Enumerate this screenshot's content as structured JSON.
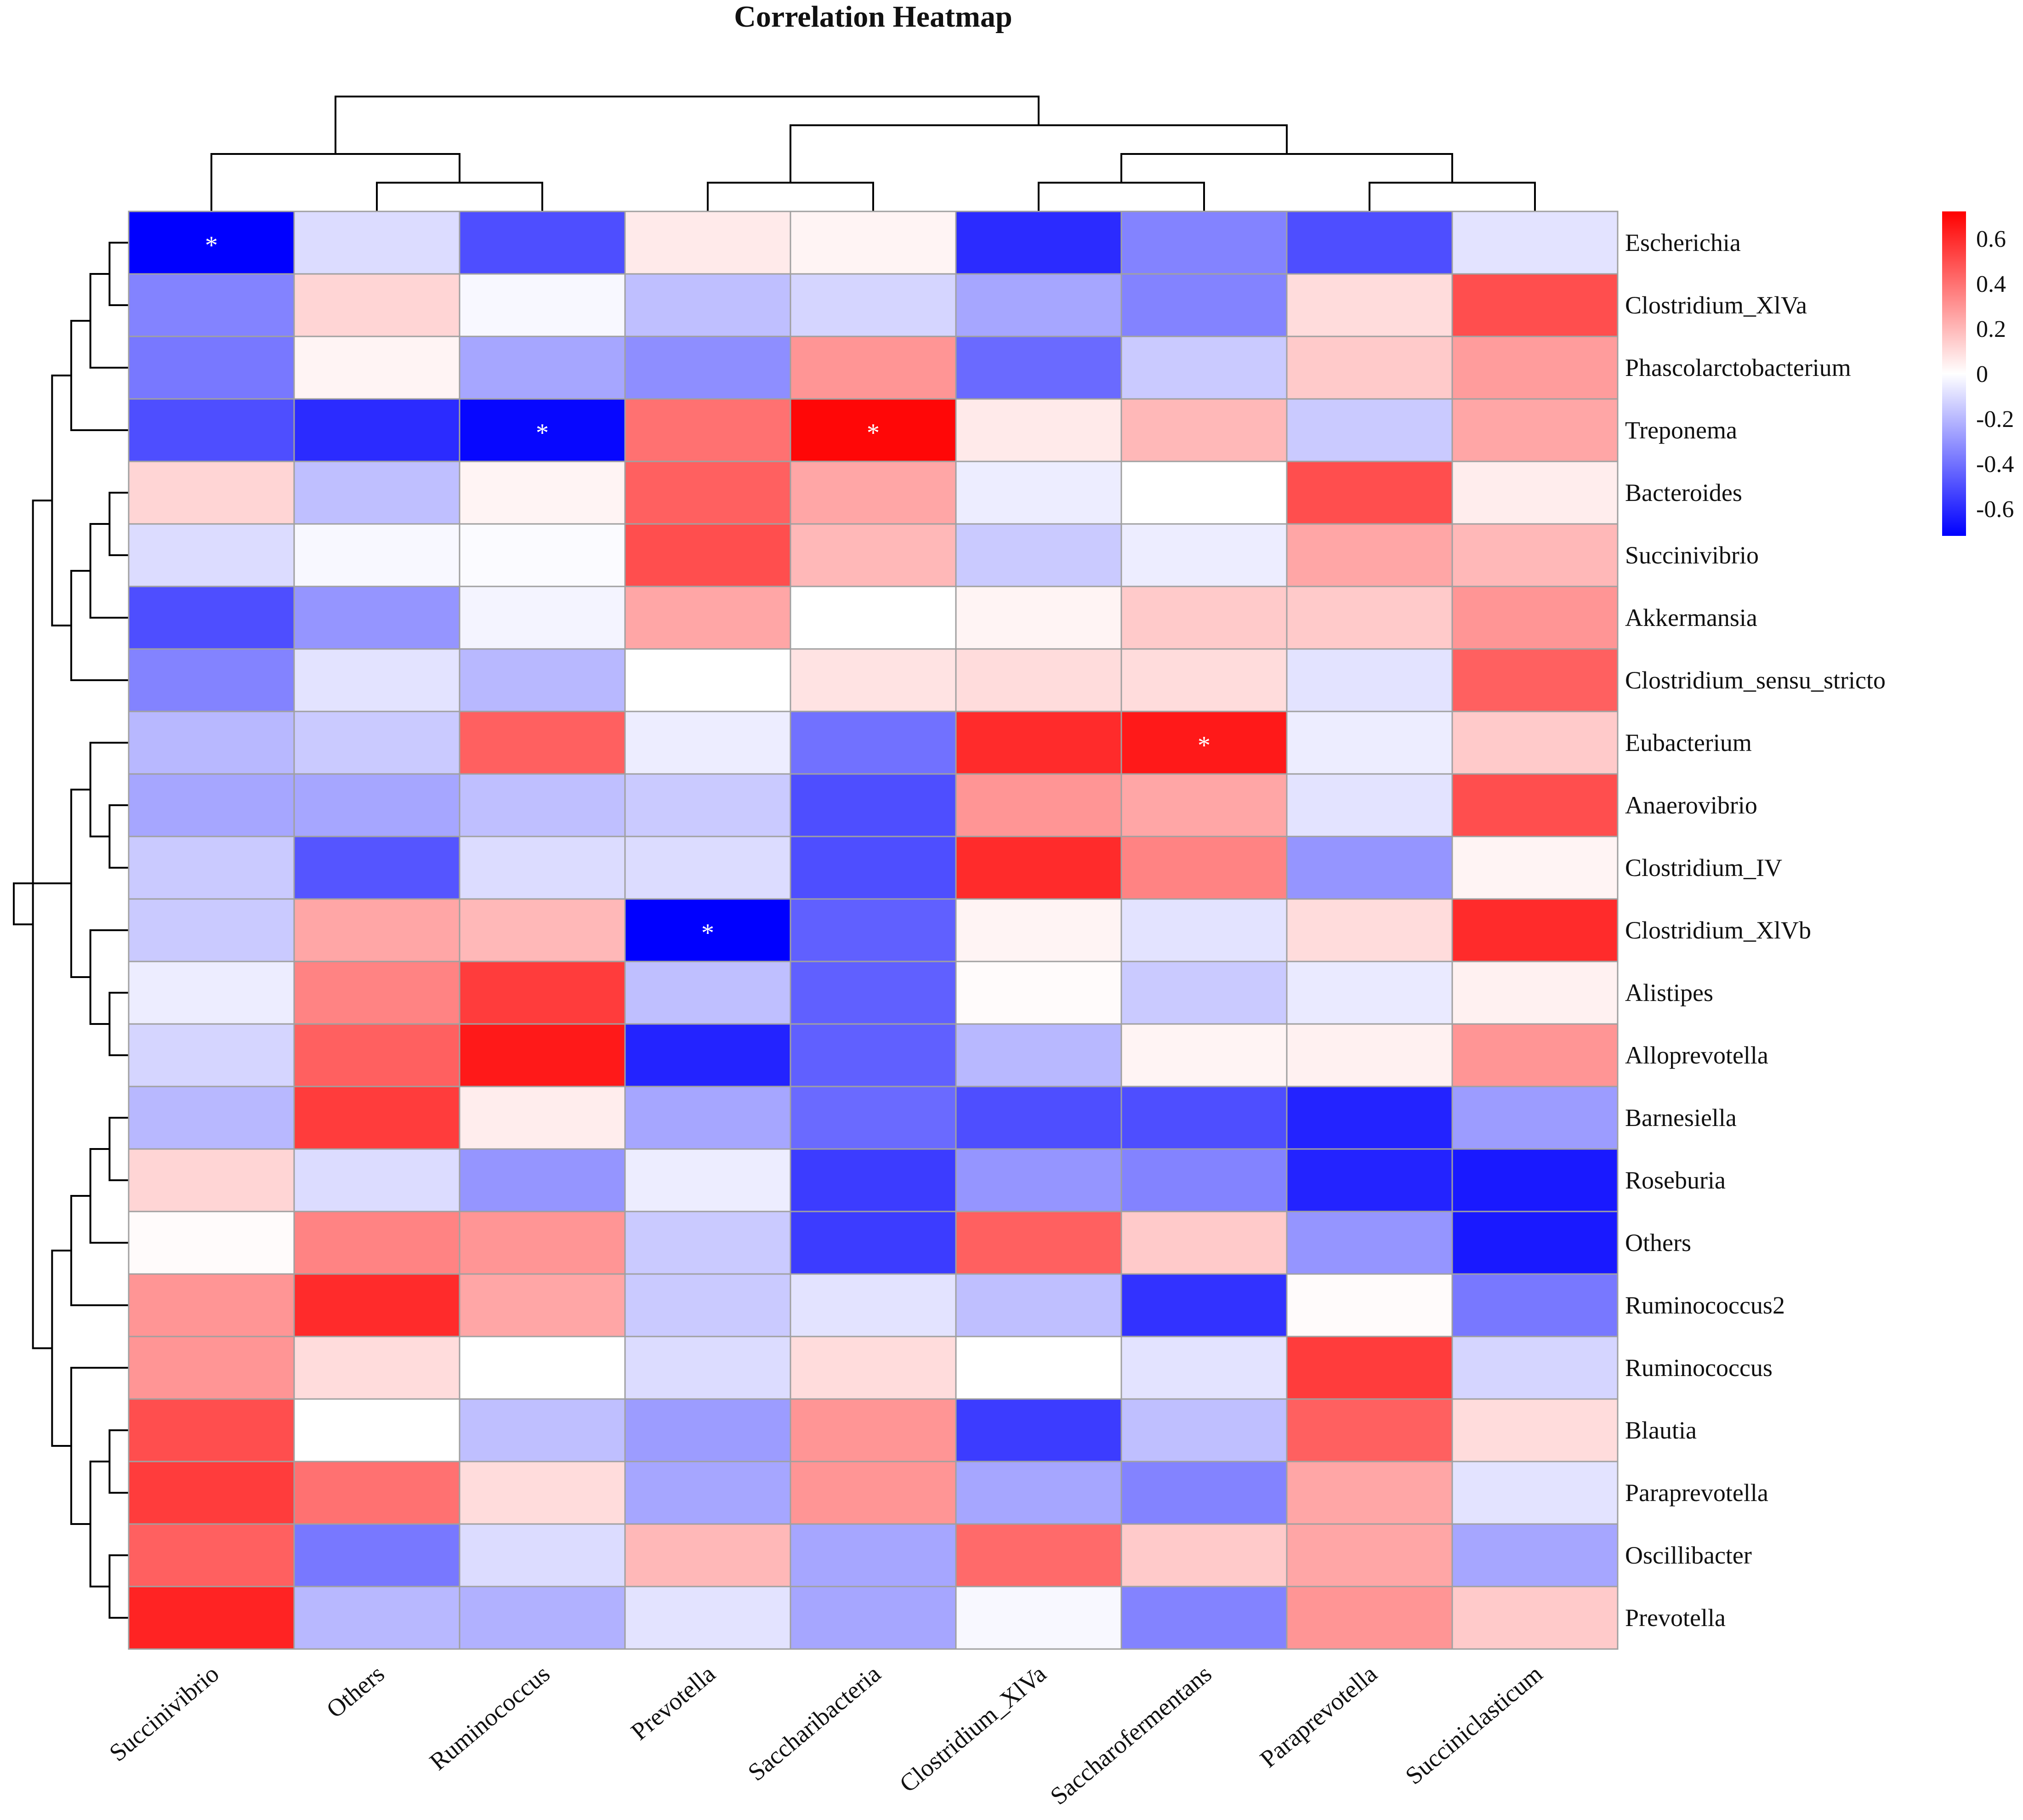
{
  "chart_data": {
    "type": "heatmap",
    "title": "Correlation Heatmap",
    "columns": [
      "Succinivibrio",
      "Others",
      "Ruminococcus",
      "Prevotella",
      "Saccharibacteria",
      "Clostridium_XlVa",
      "Saccharofermentans",
      "Paraprevotella",
      "Succiniclasticum"
    ],
    "rows": [
      "Escherichia",
      "Clostridium_XlVa",
      "Phascolarctobacterium",
      "Treponema",
      "Bacteroides",
      "Succinivibrio",
      "Akkermansia",
      "Clostridium_sensu_stricto",
      "Eubacterium",
      "Anaerovibrio",
      "Clostridium_IV",
      "Clostridium_XlVb",
      "Alistipes",
      "Alloprevotella",
      "Barnesiella",
      "Roseburia",
      "Others",
      "Ruminococcus2",
      "Ruminococcus",
      "Blautia",
      "Paraprevotella",
      "Oscillibacter",
      "Prevotella"
    ],
    "values": [
      [
        -0.72,
        -0.1,
        -0.5,
        0.06,
        0.03,
        -0.6,
        -0.35,
        -0.5,
        -0.08
      ],
      [
        -0.35,
        0.12,
        -0.02,
        -0.18,
        -0.12,
        -0.25,
        -0.35,
        0.1,
        0.5
      ],
      [
        -0.38,
        0.03,
        -0.25,
        -0.32,
        0.3,
        -0.42,
        -0.15,
        0.15,
        0.28
      ],
      [
        -0.5,
        -0.6,
        -0.7,
        0.4,
        0.7,
        0.06,
        0.2,
        -0.15,
        0.25
      ],
      [
        0.12,
        -0.18,
        0.03,
        0.45,
        0.25,
        -0.05,
        0.0,
        0.5,
        0.05
      ],
      [
        -0.1,
        -0.02,
        -0.01,
        0.5,
        0.2,
        -0.15,
        -0.05,
        0.25,
        0.2
      ],
      [
        -0.5,
        -0.3,
        -0.03,
        0.25,
        0.0,
        0.03,
        0.15,
        0.15,
        0.3
      ],
      [
        -0.35,
        -0.08,
        -0.2,
        0.0,
        0.08,
        0.1,
        0.1,
        -0.08,
        0.45
      ],
      [
        -0.2,
        -0.15,
        0.45,
        -0.05,
        -0.4,
        0.6,
        0.65,
        -0.05,
        0.15
      ],
      [
        -0.25,
        -0.25,
        -0.18,
        -0.15,
        -0.5,
        0.3,
        0.25,
        -0.08,
        0.5
      ],
      [
        -0.15,
        -0.48,
        -0.1,
        -0.1,
        -0.5,
        0.6,
        0.35,
        -0.3,
        0.03
      ],
      [
        -0.15,
        0.25,
        0.2,
        -0.72,
        -0.45,
        0.03,
        -0.08,
        0.1,
        0.6
      ],
      [
        -0.05,
        0.35,
        0.55,
        -0.18,
        -0.45,
        0.01,
        -0.15,
        -0.06,
        0.04
      ],
      [
        -0.12,
        0.45,
        0.65,
        -0.62,
        -0.45,
        -0.2,
        0.03,
        0.04,
        0.3
      ],
      [
        -0.2,
        0.55,
        0.05,
        -0.25,
        -0.42,
        -0.5,
        -0.5,
        -0.62,
        -0.28
      ],
      [
        0.12,
        -0.1,
        -0.3,
        -0.05,
        -0.55,
        -0.3,
        -0.35,
        -0.62,
        -0.65
      ],
      [
        0.01,
        0.35,
        0.3,
        -0.15,
        -0.55,
        0.45,
        0.15,
        -0.3,
        -0.65
      ],
      [
        0.3,
        0.6,
        0.25,
        -0.15,
        -0.08,
        -0.18,
        -0.58,
        0.01,
        -0.38
      ],
      [
        0.3,
        0.1,
        0.0,
        -0.1,
        0.1,
        0.0,
        -0.08,
        0.55,
        -0.12
      ],
      [
        0.5,
        0.0,
        -0.18,
        -0.28,
        0.3,
        -0.55,
        -0.18,
        0.45,
        0.1
      ],
      [
        0.55,
        0.4,
        0.1,
        -0.25,
        0.3,
        -0.25,
        -0.35,
        0.25,
        -0.08
      ],
      [
        0.45,
        -0.38,
        -0.1,
        0.2,
        -0.25,
        0.42,
        0.15,
        0.25,
        -0.25
      ],
      [
        0.62,
        -0.2,
        -0.22,
        -0.08,
        -0.25,
        -0.02,
        -0.35,
        0.3,
        0.15
      ]
    ],
    "significance_marker": "*",
    "significant_cells": [
      {
        "row": "Escherichia",
        "column": "Succinivibrio"
      },
      {
        "row": "Treponema",
        "column": "Ruminococcus"
      },
      {
        "row": "Treponema",
        "column": "Saccharibacteria"
      },
      {
        "row": "Eubacterium",
        "column": "Saccharofermentans"
      },
      {
        "row": "Clostridium_XlVb",
        "column": "Prevotella"
      }
    ],
    "color_scale": {
      "min": -0.72,
      "max": 0.72,
      "low": "#0000ff",
      "mid": "#ffffff",
      "high": "#ff0000"
    },
    "colorbar_ticks": [
      "0.6",
      "0.4",
      "0.2",
      "0",
      "-0.2",
      "-0.4",
      "-0.6"
    ],
    "colorbar_tick_values": [
      0.6,
      0.4,
      0.2,
      0,
      -0.2,
      -0.4,
      -0.6
    ],
    "legend_position": "top-right",
    "column_dendrogram": [
      [
        1,
        2
      ],
      [
        0,
        9
      ],
      [
        5,
        6
      ],
      [
        3,
        4
      ],
      [
        7,
        8
      ],
      [
        11,
        13
      ],
      [
        12,
        14
      ],
      [
        10,
        15
      ]
    ],
    "row_dendrogram": [
      [
        0,
        1
      ],
      [
        23,
        2
      ],
      [
        4,
        5
      ],
      [
        25,
        6
      ],
      [
        26,
        7
      ],
      [
        24,
        3
      ],
      [
        9,
        10
      ],
      [
        29,
        8
      ],
      [
        12,
        13
      ],
      [
        31,
        11
      ],
      [
        30,
        32
      ],
      [
        28,
        27
      ],
      [
        14,
        15
      ],
      [
        35,
        16
      ],
      [
        36,
        17
      ],
      [
        19,
        20
      ],
      [
        21,
        22
      ],
      [
        38,
        39
      ],
      [
        18,
        40
      ],
      [
        37,
        41
      ],
      [
        34,
        42
      ],
      [
        33,
        43
      ]
    ]
  }
}
